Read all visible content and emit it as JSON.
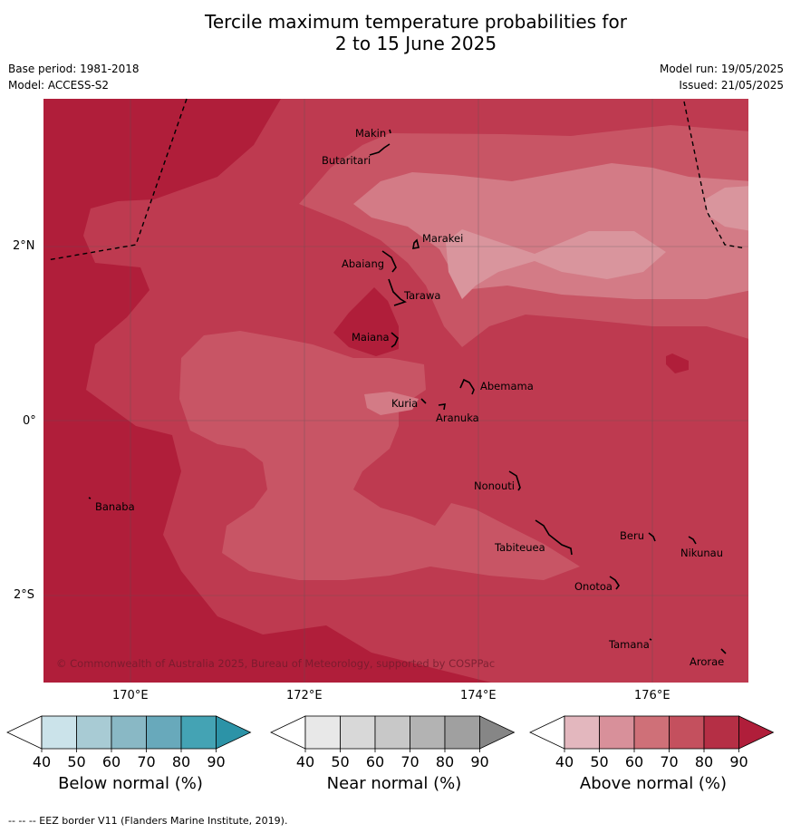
{
  "title_line1": "Tercile maximum temperature probabilities for",
  "title_line2": "2 to 15 June 2025",
  "base_period": "Base period: 1981-2018",
  "model": "Model: ACCESS-S2",
  "model_run": "Model run: 19/05/2025",
  "issued": "Issued: 21/05/2025",
  "copyright": "© Commonwealth of Australia 2025, Bureau of Meteorology, supported by COSPPac",
  "footer": "--  --  -- EEZ border V11 (Flanders Marine Institute, 2019).",
  "lat_labels": [
    "2°N",
    "0°",
    "2°S"
  ],
  "lon_labels": [
    "170°E",
    "172°E",
    "174°E",
    "176°E"
  ],
  "places": [
    "Makin",
    "Butaritari",
    "Marakei",
    "Abaiang",
    "Tarawa",
    "Maiana",
    "Abemama",
    "Kuria",
    "Aranuka",
    "Nonouti",
    "Banaba",
    "Beru",
    "Nikunau",
    "Tabiteuea",
    "Onotoa",
    "Tamana",
    "Arorae"
  ],
  "colorbars": [
    {
      "title": "Below normal (%)",
      "ticks": [
        "40",
        "50",
        "60",
        "70",
        "80",
        "90"
      ],
      "colors": [
        "#ffffff",
        "#cbe3ea",
        "#a8cbd4",
        "#89b8c5",
        "#68a9bb",
        "#44a3b4",
        "#2c93a7"
      ]
    },
    {
      "title": "Near normal (%)",
      "ticks": [
        "40",
        "50",
        "60",
        "70",
        "80",
        "90"
      ],
      "colors": [
        "#ffffff",
        "#e8e8e8",
        "#d8d8d8",
        "#c8c8c8",
        "#b3b3b3",
        "#a0a0a0",
        "#868686"
      ]
    },
    {
      "title": "Above normal (%)",
      "ticks": [
        "40",
        "50",
        "60",
        "70",
        "80",
        "90"
      ],
      "colors": [
        "#ffffff",
        "#e3b7be",
        "#d8909a",
        "#cf7078",
        "#c4505e",
        "#b52f45",
        "#b01e3a"
      ]
    }
  ]
}
